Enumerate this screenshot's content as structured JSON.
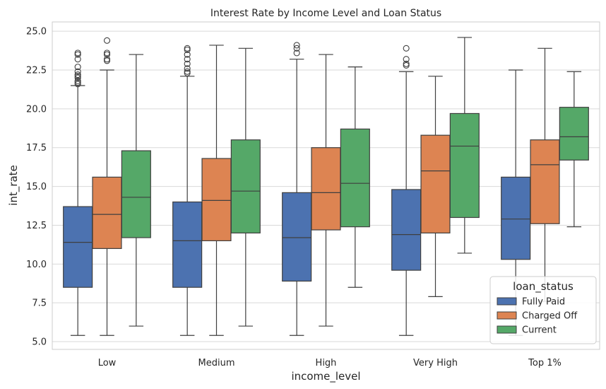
{
  "chart_data": {
    "type": "box",
    "title": "Interest Rate by Income Level and Loan Status",
    "xlabel": "income_level",
    "ylabel": "int_rate",
    "ylim": [
      4.5,
      25.6
    ],
    "yticks": [
      "5.0",
      "7.5",
      "10.0",
      "12.5",
      "15.0",
      "17.5",
      "20.0",
      "22.5",
      "25.0"
    ],
    "ytick_values": [
      5.0,
      7.5,
      10.0,
      12.5,
      15.0,
      17.5,
      20.0,
      22.5,
      25.0
    ],
    "grid": true,
    "categories": [
      "Low",
      "Medium",
      "High",
      "Very High",
      "Top 1%"
    ],
    "legend": {
      "title": "loan_status",
      "placement": "lower-right"
    },
    "series": [
      {
        "name": "Fully Paid",
        "color": "#4c72b0",
        "boxes": [
          {
            "whisker_low": 5.4,
            "q1": 8.5,
            "median": 11.4,
            "q3": 13.7,
            "whisker_high": 21.5,
            "outliers": [
              21.6,
              21.7,
              21.8,
              22.0,
              22.1,
              22.2,
              22.4,
              22.7,
              23.2,
              23.5,
              23.6
            ]
          },
          {
            "whisker_low": 5.4,
            "q1": 8.5,
            "median": 11.5,
            "q3": 14.0,
            "whisker_high": 22.1,
            "outliers": [
              22.3,
              22.4,
              22.6,
              22.9,
              23.2,
              23.5,
              23.8,
              23.9
            ]
          },
          {
            "whisker_low": 5.4,
            "q1": 8.9,
            "median": 11.7,
            "q3": 14.6,
            "whisker_high": 23.2,
            "outliers": [
              23.6,
              23.9,
              24.1
            ]
          },
          {
            "whisker_low": 5.4,
            "q1": 9.6,
            "median": 11.9,
            "q3": 14.8,
            "whisker_high": 22.4,
            "outliers": [
              22.8,
              22.9,
              23.2,
              23.9
            ]
          },
          {
            "whisker_low": 5.4,
            "q1": 10.3,
            "median": 12.9,
            "q3": 15.6,
            "whisker_high": 22.5,
            "outliers": []
          }
        ]
      },
      {
        "name": "Charged Off",
        "color": "#dd8452",
        "boxes": [
          {
            "whisker_low": 5.4,
            "q1": 11.0,
            "median": 13.2,
            "q3": 15.6,
            "whisker_high": 22.5,
            "outliers": [
              23.1,
              23.2,
              23.5,
              23.6,
              24.4
            ]
          },
          {
            "whisker_low": 5.4,
            "q1": 11.5,
            "median": 14.1,
            "q3": 16.8,
            "whisker_high": 24.1,
            "outliers": []
          },
          {
            "whisker_low": 6.0,
            "q1": 12.2,
            "median": 14.6,
            "q3": 17.5,
            "whisker_high": 23.5,
            "outliers": []
          },
          {
            "whisker_low": 7.9,
            "q1": 12.0,
            "median": 16.0,
            "q3": 18.3,
            "whisker_high": 22.1,
            "outliers": []
          },
          {
            "whisker_low": 7.6,
            "q1": 12.6,
            "median": 16.4,
            "q3": 18.0,
            "whisker_high": 23.9,
            "outliers": []
          }
        ]
      },
      {
        "name": "Current",
        "color": "#55a868",
        "boxes": [
          {
            "whisker_low": 6.0,
            "q1": 11.7,
            "median": 14.3,
            "q3": 17.3,
            "whisker_high": 23.5,
            "outliers": []
          },
          {
            "whisker_low": 6.0,
            "q1": 12.0,
            "median": 14.7,
            "q3": 18.0,
            "whisker_high": 23.9,
            "outliers": []
          },
          {
            "whisker_low": 8.5,
            "q1": 12.4,
            "median": 15.2,
            "q3": 18.7,
            "whisker_high": 22.7,
            "outliers": []
          },
          {
            "whisker_low": 10.7,
            "q1": 13.0,
            "median": 17.6,
            "q3": 19.7,
            "whisker_high": 24.6,
            "outliers": []
          },
          {
            "whisker_low": 12.4,
            "q1": 16.7,
            "median": 18.2,
            "q3": 20.1,
            "whisker_high": 22.4,
            "outliers": []
          }
        ]
      }
    ]
  }
}
